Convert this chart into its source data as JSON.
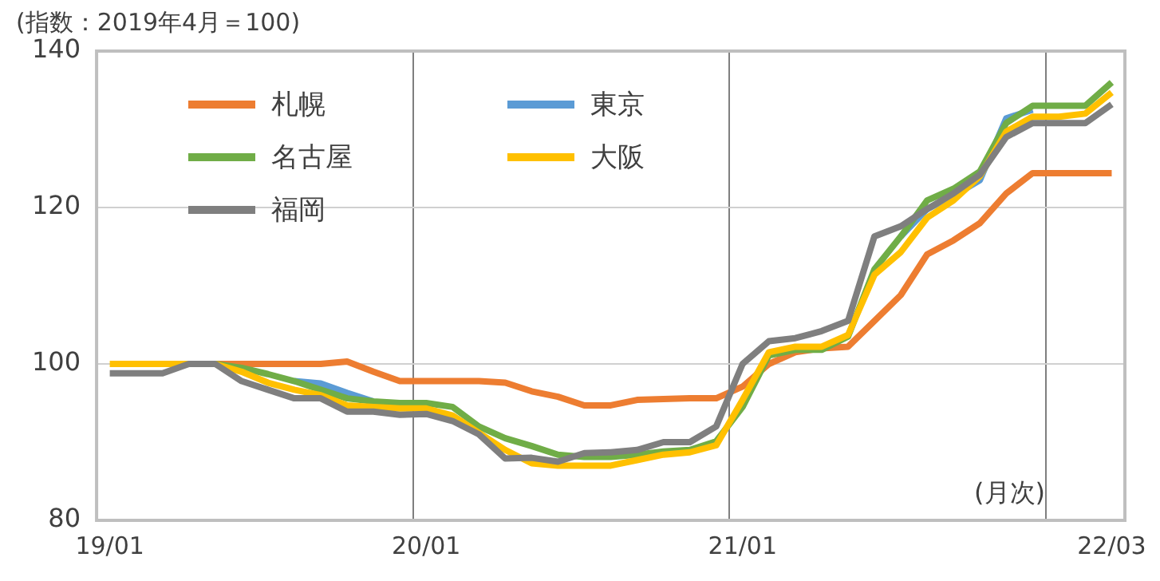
{
  "chart_data": {
    "type": "line",
    "title": "(指数：2019年4月＝100)",
    "categories": [
      "19/01",
      null,
      null,
      null,
      null,
      null,
      null,
      null,
      null,
      null,
      null,
      null,
      "20/01",
      null,
      null,
      null,
      null,
      null,
      null,
      null,
      null,
      null,
      null,
      null,
      "21/01",
      null,
      null,
      null,
      null,
      null,
      null,
      null,
      null,
      null,
      null,
      null,
      null,
      null,
      "22/03"
    ],
    "series": [
      {
        "name": "札幌",
        "color": "#ed7d31",
        "values": [
          null,
          null,
          null,
          100,
          100,
          100,
          100,
          100,
          100,
          100.3,
          99,
          97.8,
          97.8,
          97.8,
          97.8,
          97.6,
          96.5,
          95.8,
          94.7,
          94.7,
          95.4,
          95.5,
          95.6,
          95.6,
          97.1,
          100,
          101.5,
          102,
          102.2,
          105.5,
          108.8,
          114,
          115.8,
          118,
          121.8,
          124.4,
          124.4,
          124.4,
          124.4
        ]
      },
      {
        "name": "東京",
        "color": "#5b9bd5",
        "values": [
          null,
          null,
          null,
          null,
          null,
          null,
          null,
          97.8,
          97.5,
          96.3,
          95.2,
          null,
          null,
          null,
          null,
          null,
          null,
          null,
          null,
          null,
          null,
          null,
          null,
          null,
          null,
          null,
          null,
          null,
          null,
          null,
          116.3,
          119.8,
          121.5,
          123.5,
          131.4,
          132.5,
          null,
          null,
          null
        ]
      },
      {
        "name": "名古屋",
        "color": "#70ad47",
        "values": [
          null,
          null,
          null,
          100,
          100,
          99.5,
          98.7,
          97.8,
          96.7,
          95.6,
          95.2,
          95,
          95,
          94.5,
          92,
          90.5,
          89.5,
          88.4,
          88.1,
          88.1,
          88.4,
          88.8,
          89,
          90.1,
          94.5,
          101.1,
          101.8,
          101.8,
          103.5,
          112.1,
          116.3,
          120.9,
          122.4,
          124.6,
          130.8,
          133,
          133,
          133,
          136
        ]
      },
      {
        "name": "大阪",
        "color": "#ffc000",
        "values": [
          100,
          100,
          100,
          100,
          100,
          99,
          97.6,
          96.7,
          96,
          94.7,
          94.5,
          94.3,
          94.3,
          93.4,
          91.2,
          89,
          87.3,
          87,
          87,
          87,
          87.7,
          88.4,
          88.7,
          89.6,
          95.4,
          101.5,
          102.2,
          102.2,
          103.7,
          111.4,
          114.3,
          118.7,
          120.9,
          124,
          129.7,
          131.6,
          131.6,
          132,
          134.7
        ]
      },
      {
        "name": "福岡",
        "color": "#7f7f7f",
        "values": [
          98.8,
          98.8,
          98.8,
          100,
          100,
          97.8,
          96.7,
          95.6,
          95.6,
          93.9,
          93.9,
          93.5,
          93.6,
          92.7,
          91,
          87.9,
          88,
          87.5,
          88.6,
          88.7,
          89,
          90,
          90,
          92,
          100,
          102.9,
          103.3,
          104.2,
          105.5,
          116.3,
          117.6,
          119.8,
          121.8,
          124.2,
          129,
          130.8,
          130.8,
          130.8,
          133.2
        ]
      }
    ],
    "ylim": [
      80,
      140
    ],
    "yticks": [
      80,
      100,
      120,
      140
    ],
    "grid": true,
    "legend": "top left",
    "annotations": [
      "(月次)"
    ]
  }
}
